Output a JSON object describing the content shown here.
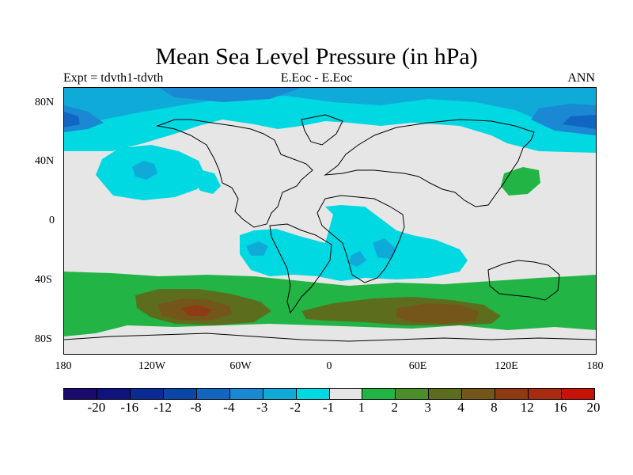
{
  "title": "Mean Sea Level Pressure (in hPa)",
  "subtitle_left": "Expt = tdvth1-tdvth",
  "subtitle_center": "E.Eoc - E.Eoc",
  "subtitle_right": "ANN",
  "lat_labels": [
    "80N",
    "40N",
    "0",
    "40S",
    "80S"
  ],
  "lon_labels": [
    "180",
    "120W",
    "60W",
    "0",
    "60E",
    "120E",
    "180"
  ],
  "colorbar": {
    "labels": [
      "-20",
      "-16",
      "-12",
      "-8",
      "-4",
      "-3",
      "-2",
      "-1",
      "1",
      "2",
      "3",
      "4",
      "8",
      "12",
      "16",
      "20"
    ],
    "colors": [
      "#1a0a6e",
      "#10127e",
      "#0a2a96",
      "#0a46aa",
      "#1166c2",
      "#1a88d2",
      "#10aad8",
      "#00d8e2",
      "#e6e6e6",
      "#22b445",
      "#4c8e2a",
      "#5c6e1e",
      "#74561a",
      "#8e3a14",
      "#a82a10",
      "#c81208"
    ]
  },
  "map_colors": {
    "background": "#e6e6e6",
    "light_cyan": "#00d8e2",
    "mid_blue": "#10aad8",
    "blue": "#1a88d2",
    "dark_blue": "#1166c2",
    "light_green": "#22b445",
    "olive": "#5c6e1e",
    "brown": "#74561a",
    "dark_brown": "#8e3a14"
  }
}
